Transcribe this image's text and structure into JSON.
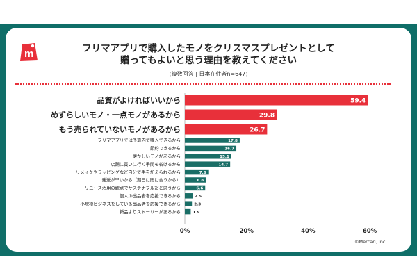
{
  "header": {
    "title_line1": "フリマアプリで購入したモノをクリスマスプレゼントとして",
    "title_line2": "贈ってもよいと思う理由を教えてください",
    "subtitle": "(複数回答 | 日本在住者n=647)",
    "logo_letter": "m"
  },
  "footer": {
    "copyright": "©Mercari, Inc."
  },
  "colors": {
    "frame": "#0f6e68",
    "highlight_bar": "#e8303a",
    "normal_bar": "#1a6e66",
    "logo_red": "#e8303a"
  },
  "chart_data": {
    "type": "bar",
    "orientation": "horizontal",
    "categories": [
      "品質がよければいいから",
      "めずらしいモノ・一点モノがあるから",
      "もう売られていないモノがあるから",
      "フリマアプリでは予算内で購入できるから",
      "節約できるから",
      "懐かしいモノがあるから",
      "店舗に買いに行く手間を省けるから",
      "リメイクやラッピングなど自分で手を加えられるから",
      "発送が早いから（期日に間に合うから）",
      "リユース活用の観点でサステナブルだと思うから",
      "個人の出品者を応援できるから",
      "小規模ビジネスをしている出品者を応援できるから",
      "新品よりストーリーがあるから"
    ],
    "values": [
      59.4,
      29.8,
      26.7,
      17.8,
      16.7,
      15.1,
      14.7,
      7.6,
      6.8,
      6.6,
      2.5,
      2.3,
      1.9
    ],
    "value_labels": [
      "59.4",
      "29.8",
      "26.7",
      "17.8",
      "16.7",
      "15.1",
      "14.7",
      "7.6",
      "6.8",
      "6.6",
      "2.5",
      "2.3",
      "1.9"
    ],
    "highlighted": [
      true,
      true,
      true,
      false,
      false,
      false,
      false,
      false,
      false,
      false,
      false,
      false,
      false
    ],
    "xlim": [
      0,
      60
    ],
    "xticks": [
      "0%",
      "20%",
      "40%",
      "60%"
    ],
    "grid": false
  }
}
